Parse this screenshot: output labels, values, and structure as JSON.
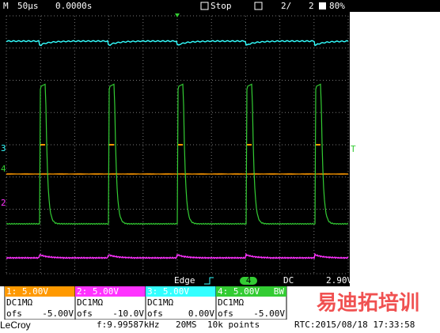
{
  "header": {
    "mode": "M",
    "timebase": "50µs",
    "delay": "0.0000s",
    "state": "Stop",
    "page": "2/",
    "pages": "2",
    "battery": "80%"
  },
  "screen": {
    "ch3_marker": "3",
    "ch4_marker": "4",
    "ch2_marker": "2",
    "trigger_marker": "T"
  },
  "trigger": {
    "type": "Edge",
    "source": "4",
    "coupling": "DC",
    "level": "2.90V"
  },
  "channels": [
    {
      "label": "1: 5.00V",
      "coupling": "DC1MΩ",
      "ofs_label": "ofs",
      "offset": "-5.00V"
    },
    {
      "label": "2: 5.00V",
      "coupling": "DC1MΩ",
      "ofs_label": "ofs",
      "offset": "-10.0V"
    },
    {
      "label": "3: 5.00V",
      "coupling": "DC1MΩ",
      "ofs_label": "ofs",
      "offset": "0.00V"
    },
    {
      "label": "4: 5.00V",
      "bw": "BW",
      "coupling": "DC1MΩ",
      "ofs_label": "ofs",
      "offset": "-5.00V"
    }
  ],
  "footer": {
    "brand": "LeCroy",
    "frequency": "f:9.99587kHz",
    "sample_rate": "20MS",
    "points": "10k points",
    "rtc": "RTC:2015/08/18 17:33:58"
  },
  "watermark": "易迪拓培训"
}
